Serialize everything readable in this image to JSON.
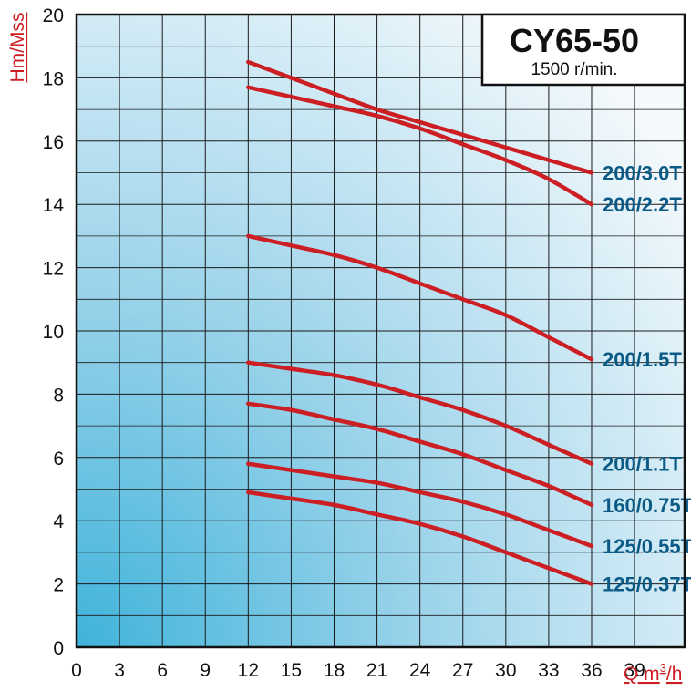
{
  "chart_data": {
    "type": "line",
    "title": "CY65-50",
    "subtitle": "1500 r/min.",
    "xlabel_text": "Q m",
    "xlabel_sup": "3",
    "xlabel_tail": "/h",
    "ylabel": "Hm/Mss",
    "xlim": [
      0,
      42.5
    ],
    "ylim": [
      0,
      20
    ],
    "x_ticks": [
      "0",
      "3",
      "6",
      "9",
      "12",
      "15",
      "18",
      "21",
      "24",
      "27",
      "30",
      "33",
      "36",
      "39"
    ],
    "y_ticks": [
      "0",
      "2",
      "4",
      "6",
      "8",
      "10",
      "12",
      "14",
      "16",
      "18",
      "20"
    ],
    "grid": true,
    "series": [
      {
        "name": "200/3.0T",
        "x": [
          12,
          15,
          18,
          21,
          24,
          27,
          30,
          33,
          36
        ],
        "y": [
          18.5,
          18.0,
          17.5,
          17.0,
          16.6,
          16.2,
          15.8,
          15.4,
          15.0
        ]
      },
      {
        "name": "200/2.2T",
        "x": [
          12,
          15,
          18,
          21,
          24,
          27,
          30,
          33,
          36
        ],
        "y": [
          17.7,
          17.4,
          17.1,
          16.8,
          16.4,
          15.9,
          15.4,
          14.8,
          14.0
        ]
      },
      {
        "name": "200/1.5T",
        "x": [
          12,
          15,
          18,
          21,
          24,
          27,
          30,
          33,
          36
        ],
        "y": [
          13.0,
          12.7,
          12.4,
          12.0,
          11.5,
          11.0,
          10.5,
          9.8,
          9.1
        ]
      },
      {
        "name": "200/1.1T",
        "x": [
          12,
          15,
          18,
          21,
          24,
          27,
          30,
          33,
          36
        ],
        "y": [
          9.0,
          8.8,
          8.6,
          8.3,
          7.9,
          7.5,
          7.0,
          6.4,
          5.8
        ]
      },
      {
        "name": "160/0.75T",
        "x": [
          12,
          15,
          18,
          21,
          24,
          27,
          30,
          33,
          36
        ],
        "y": [
          7.7,
          7.5,
          7.2,
          6.9,
          6.5,
          6.1,
          5.6,
          5.1,
          4.5
        ]
      },
      {
        "name": "125/0.55T",
        "x": [
          12,
          15,
          18,
          21,
          24,
          27,
          30,
          33,
          36
        ],
        "y": [
          5.8,
          5.6,
          5.4,
          5.2,
          4.9,
          4.6,
          4.2,
          3.7,
          3.2
        ]
      },
      {
        "name": "125/0.37T",
        "x": [
          12,
          15,
          18,
          21,
          24,
          27,
          30,
          33,
          36
        ],
        "y": [
          4.9,
          4.7,
          4.5,
          4.2,
          3.9,
          3.5,
          3.0,
          2.5,
          2.0
        ]
      }
    ],
    "colors": {
      "curve": "#cc1f24",
      "label": "#0b5a86",
      "axis_title": "#cc1f24",
      "grid": "#1a1a1a",
      "bg_light": "#f2f8fc",
      "bg_dark": "#3fb3da"
    }
  }
}
